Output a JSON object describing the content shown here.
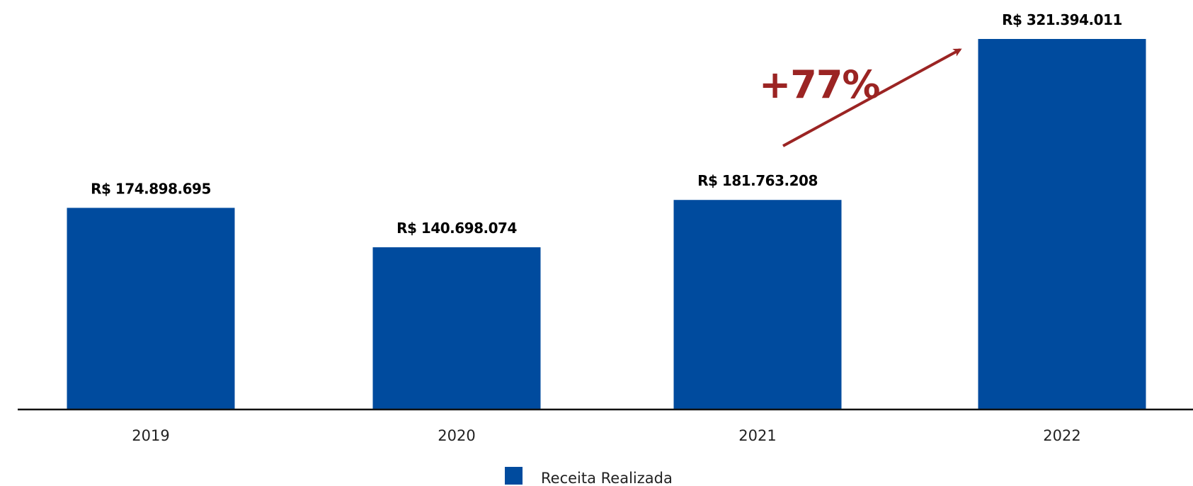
{
  "chart_data": {
    "type": "bar",
    "categories": [
      "2019",
      "2020",
      "2021",
      "2022"
    ],
    "series": [
      {
        "name": "Receita Realizada",
        "values": [
          174898695,
          140698074,
          181763208,
          321394011
        ]
      }
    ],
    "data_labels": [
      "R$ 174.898.695",
      "R$ 140.698.074",
      "R$ 181.763.208",
      "R$ 321.394.011"
    ],
    "ylim": [
      0,
      321394011
    ],
    "grid": false,
    "legend": {
      "position": "bottom",
      "label": "Receita Realizada"
    },
    "annotation": {
      "text": "+77%",
      "from": "2021",
      "to": "2022"
    },
    "colors": {
      "bar": "#004b9e",
      "annotation": "#9b2423",
      "axis": "#111111"
    }
  }
}
